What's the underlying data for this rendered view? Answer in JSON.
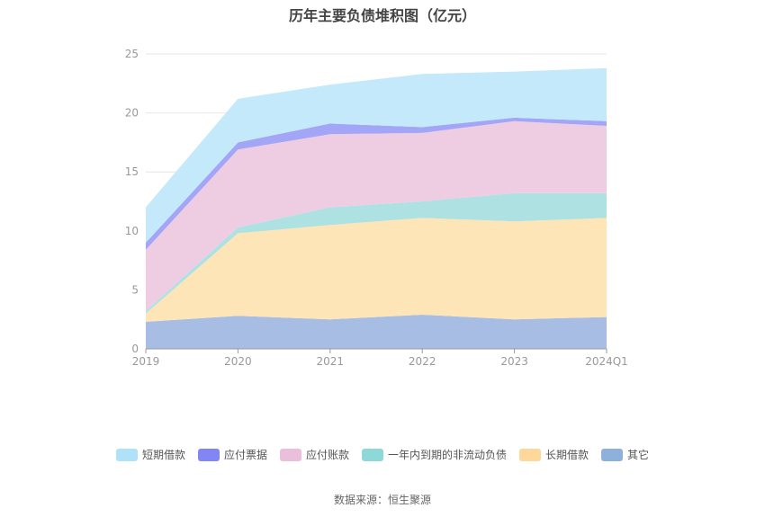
{
  "chart_data": {
    "type": "area",
    "stacked": true,
    "title": "历年主要负债堆积图（亿元）",
    "categories": [
      "2019",
      "2020",
      "2021",
      "2022",
      "2023",
      "2024Q1"
    ],
    "ylim": [
      0,
      25
    ],
    "yticks": [
      0,
      5,
      10,
      15,
      20,
      25
    ],
    "grid": true,
    "legend_position": "bottom",
    "series": [
      {
        "name": "其它",
        "color": "#a7bde3",
        "legend_color": "#8eb0db",
        "values": [
          2.3,
          2.8,
          2.5,
          2.9,
          2.5,
          2.7
        ]
      },
      {
        "name": "长期借款",
        "color": "#fde5b8",
        "legend_color": "#fdd89a",
        "values": [
          0.7,
          7.0,
          8.0,
          8.2,
          8.3,
          8.4
        ]
      },
      {
        "name": "一年内到期的非流动负债",
        "color": "#aee2e2",
        "legend_color": "#8fd8d8",
        "values": [
          0.2,
          0.5,
          1.5,
          1.4,
          2.4,
          2.1
        ]
      },
      {
        "name": "应付账款",
        "color": "#eecde3",
        "legend_color": "#ebbedc",
        "values": [
          5.2,
          6.6,
          6.2,
          5.8,
          6.1,
          5.7
        ]
      },
      {
        "name": "应付票据",
        "color": "#a3a5f6",
        "legend_color": "#8286f3",
        "values": [
          0.6,
          0.6,
          0.9,
          0.5,
          0.3,
          0.4
        ]
      },
      {
        "name": "短期借款",
        "color": "#c3e9fa",
        "legend_color": "#afe2f8",
        "values": [
          3.0,
          3.7,
          3.3,
          4.5,
          3.9,
          4.5
        ]
      }
    ],
    "legend_order": [
      "短期借款",
      "应付票据",
      "应付账款",
      "一年内到期的非流动负债",
      "长期借款",
      "其它"
    ]
  },
  "source_text": "数据来源：恒生聚源",
  "colors": {
    "grid": "#e6e6e6",
    "axis": "#999999",
    "tick_text": "#999999"
  }
}
